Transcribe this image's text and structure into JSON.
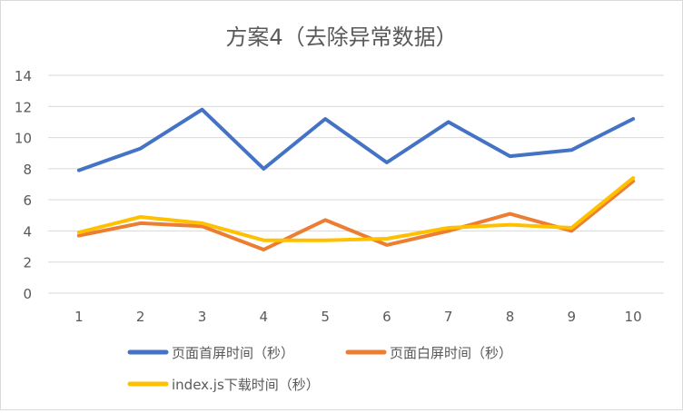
{
  "chart_data": {
    "type": "line",
    "title": "方案4（去除异常数据）",
    "xlabel": "",
    "ylabel": "",
    "categories": [
      "1",
      "2",
      "3",
      "4",
      "5",
      "6",
      "7",
      "8",
      "9",
      "10"
    ],
    "ylim": [
      0,
      14
    ],
    "yticks": [
      "0",
      "2",
      "4",
      "6",
      "8",
      "10",
      "12",
      "14"
    ],
    "grid": true,
    "legend_position": "bottom",
    "series": [
      {
        "name": "页面首屏时间（秒）",
        "color": "#4472c4",
        "values": [
          7.9,
          9.3,
          11.8,
          8.0,
          11.2,
          8.4,
          11.0,
          8.8,
          9.2,
          11.2
        ]
      },
      {
        "name": "页面白屏时间（秒）",
        "color": "#ed7d31",
        "values": [
          3.7,
          4.5,
          4.3,
          2.8,
          4.7,
          3.1,
          4.0,
          5.1,
          4.0,
          7.2
        ]
      },
      {
        "name": "index.js下载时间（秒）",
        "color": "#ffc000",
        "values": [
          3.9,
          4.9,
          4.5,
          3.4,
          3.4,
          3.5,
          4.2,
          4.4,
          4.2,
          7.4
        ]
      }
    ]
  }
}
